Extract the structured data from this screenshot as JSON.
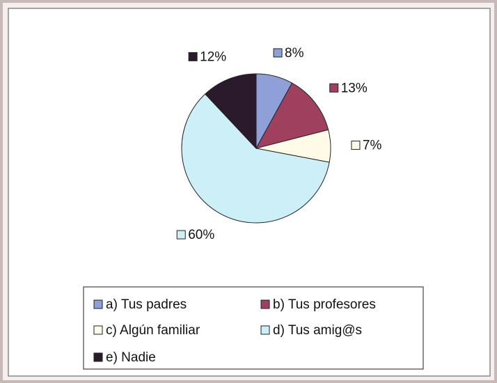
{
  "chart_data": {
    "type": "pie",
    "categories": [
      "a) Tus padres",
      "b) Tus profesores",
      "c) Algún familiar",
      "d) Tus amig@s",
      "e) Nadie"
    ],
    "values": [
      8,
      13,
      7,
      60,
      12
    ],
    "value_labels": [
      "8%",
      "13%",
      "7%",
      "60%",
      "12%"
    ],
    "colors": [
      "#8f9fd8",
      "#a0405f",
      "#fffbe6",
      "#cdf0f8",
      "#2b1a2b"
    ]
  }
}
